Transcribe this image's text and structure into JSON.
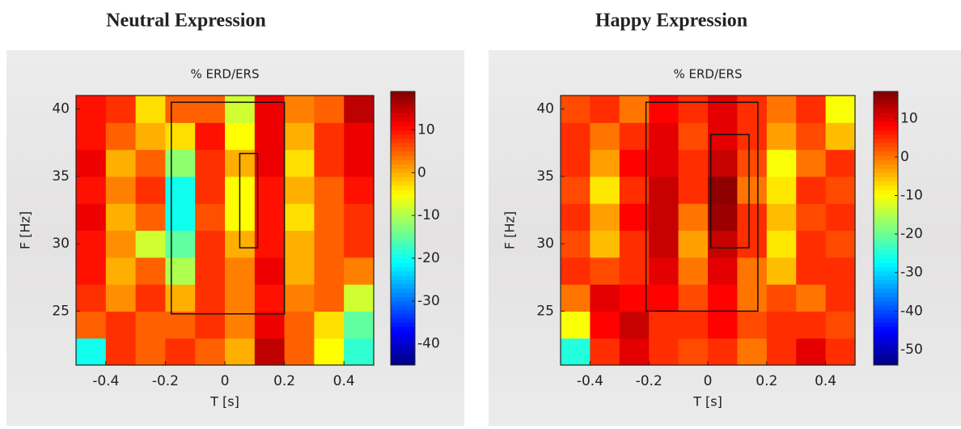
{
  "chart_data": [
    {
      "type": "heatmap",
      "title": "Neutral Expression",
      "subtitle": "% ERD/ERS",
      "xlabel": "T [s]",
      "ylabel": "F [Hz]",
      "colormap": "jet",
      "x": [
        -0.45,
        -0.35,
        -0.25,
        -0.15,
        -0.05,
        0.05,
        0.15,
        0.25,
        0.35,
        0.45
      ],
      "y": [
        22,
        24,
        26,
        28,
        30,
        32,
        34,
        36,
        38,
        40
      ],
      "z": [
        [
          -20,
          8,
          5,
          8,
          5,
          0,
          15,
          5,
          -5,
          -18
        ],
        [
          5,
          8,
          5,
          5,
          8,
          3,
          12,
          5,
          -3,
          -15
        ],
        [
          8,
          2,
          8,
          0,
          8,
          3,
          10,
          3,
          5,
          -8
        ],
        [
          10,
          0,
          5,
          -10,
          8,
          3,
          12,
          0,
          5,
          3
        ],
        [
          10,
          2,
          -8,
          -15,
          8,
          0,
          10,
          0,
          5,
          8
        ],
        [
          12,
          0,
          5,
          -20,
          6,
          -5,
          10,
          -3,
          5,
          8
        ],
        [
          10,
          3,
          8,
          -20,
          8,
          -5,
          10,
          0,
          5,
          10
        ],
        [
          12,
          0,
          5,
          -12,
          8,
          0,
          12,
          -3,
          8,
          12
        ],
        [
          10,
          5,
          0,
          -3,
          10,
          -5,
          12,
          0,
          8,
          12
        ],
        [
          10,
          8,
          -3,
          5,
          5,
          -8,
          12,
          3,
          5,
          15
        ]
      ],
      "xlim": [
        -0.5,
        0.5
      ],
      "xticks": [
        -0.4,
        -0.2,
        0,
        0.2,
        0.4
      ],
      "ylim": [
        21,
        41
      ],
      "yticks": [
        25,
        30,
        35,
        40
      ],
      "clim": [
        -45,
        19
      ],
      "cticks": [
        10,
        0,
        -10,
        -20,
        -30,
        -40
      ],
      "boxes": [
        {
          "x": [
            -0.18,
            0.2
          ],
          "y": [
            24.8,
            40.5
          ]
        },
        {
          "x": [
            0.05,
            0.11
          ],
          "y": [
            29.7,
            36.7
          ]
        }
      ]
    },
    {
      "type": "heatmap",
      "title": "Happy Expression",
      "subtitle": "% ERD/ERS",
      "xlabel": "T [s]",
      "ylabel": "F [Hz]",
      "colormap": "jet",
      "x": [
        -0.45,
        -0.35,
        -0.25,
        -0.15,
        -0.05,
        0.05,
        0.15,
        0.25,
        0.35,
        0.45
      ],
      "y": [
        22,
        24,
        26,
        28,
        30,
        32,
        34,
        36,
        38,
        40
      ],
      "z": [
        [
          -25,
          5,
          10,
          5,
          3,
          5,
          0,
          5,
          10,
          5
        ],
        [
          -10,
          8,
          12,
          5,
          5,
          8,
          3,
          5,
          5,
          3
        ],
        [
          0,
          10,
          8,
          8,
          3,
          8,
          0,
          3,
          0,
          5
        ],
        [
          5,
          3,
          5,
          10,
          0,
          10,
          0,
          -5,
          5,
          5
        ],
        [
          3,
          -5,
          5,
          12,
          -3,
          12,
          5,
          -8,
          5,
          3
        ],
        [
          5,
          -3,
          8,
          12,
          0,
          15,
          5,
          -5,
          3,
          5
        ],
        [
          3,
          -8,
          5,
          12,
          5,
          16,
          0,
          -8,
          5,
          3
        ],
        [
          5,
          -3,
          8,
          10,
          5,
          12,
          3,
          -10,
          0,
          5
        ],
        [
          5,
          0,
          5,
          10,
          3,
          10,
          5,
          -3,
          3,
          -5
        ],
        [
          3,
          5,
          0,
          8,
          5,
          10,
          5,
          0,
          5,
          -10
        ]
      ],
      "xlim": [
        -0.5,
        0.5
      ],
      "xticks": [
        -0.4,
        -0.2,
        0,
        0.2,
        0.4
      ],
      "ylim": [
        21,
        41
      ],
      "yticks": [
        25,
        30,
        35,
        40
      ],
      "clim": [
        -54,
        17
      ],
      "cticks": [
        10,
        0,
        -10,
        -20,
        -30,
        -40,
        -50
      ],
      "boxes": [
        {
          "x": [
            -0.21,
            0.17
          ],
          "y": [
            25,
            40.5
          ]
        },
        {
          "x": [
            0.01,
            0.14
          ],
          "y": [
            29.7,
            38.1
          ]
        }
      ]
    }
  ]
}
